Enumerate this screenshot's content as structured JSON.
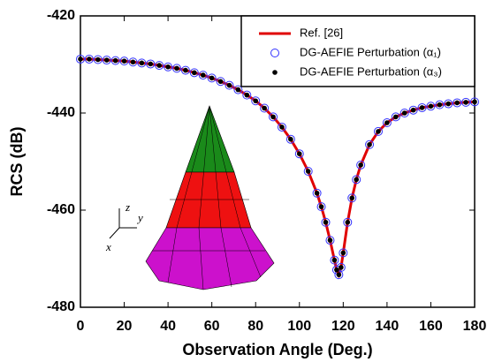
{
  "chart_data": {
    "type": "line",
    "x_label": "Observation Angle (Deg.)",
    "y_label": "RCS (dB)",
    "xlim": [
      0,
      180
    ],
    "xticks": [
      0,
      20,
      40,
      60,
      80,
      100,
      120,
      140,
      160,
      180
    ],
    "ylim": [
      -480,
      -420
    ],
    "yticks": [
      -480,
      -460,
      -440,
      -420
    ],
    "legend": "top-right",
    "annotations": [
      "z",
      "y",
      "x"
    ],
    "x": [
      0,
      4,
      8,
      12,
      16,
      20,
      24,
      28,
      32,
      36,
      40,
      44,
      48,
      52,
      56,
      60,
      64,
      68,
      72,
      76,
      80,
      84,
      88,
      92,
      96,
      100,
      104,
      108,
      110,
      112,
      114,
      116,
      117,
      118,
      119,
      120,
      122,
      124,
      126,
      128,
      132,
      136,
      140,
      144,
      148,
      152,
      156,
      160,
      164,
      168,
      172,
      176,
      180
    ],
    "series": [
      {
        "name": "Ref. [26]",
        "color": "#e00000",
        "style": "line",
        "values": [
          -428.9,
          -428.9,
          -429.0,
          -429.1,
          -429.2,
          -429.3,
          -429.5,
          -429.7,
          -429.9,
          -430.2,
          -430.5,
          -430.8,
          -431.2,
          -431.7,
          -432.2,
          -432.8,
          -433.5,
          -434.3,
          -435.2,
          -436.3,
          -437.5,
          -439.0,
          -440.8,
          -442.9,
          -445.4,
          -448.4,
          -452.0,
          -456.5,
          -459.3,
          -462.5,
          -466.2,
          -470.3,
          -472.3,
          -473.3,
          -471.8,
          -468.8,
          -462.5,
          -457.5,
          -453.7,
          -450.7,
          -446.5,
          -443.8,
          -442.0,
          -440.8,
          -440.0,
          -439.4,
          -438.9,
          -438.6,
          -438.3,
          -438.1,
          -437.9,
          -437.8,
          -437.7
        ]
      },
      {
        "name": "DG-AEFIE Perturbation  (α₁)",
        "color": "#3333ff",
        "style": "open-circle",
        "values": [
          -428.9,
          -428.9,
          -429.0,
          -429.1,
          -429.2,
          -429.3,
          -429.5,
          -429.7,
          -429.9,
          -430.2,
          -430.5,
          -430.8,
          -431.2,
          -431.7,
          -432.2,
          -432.8,
          -433.5,
          -434.3,
          -435.2,
          -436.3,
          -437.5,
          -439.0,
          -440.8,
          -442.9,
          -445.4,
          -448.4,
          -452.0,
          -456.5,
          -459.3,
          -462.5,
          -466.2,
          -470.3,
          -472.3,
          -473.3,
          -471.8,
          -468.8,
          -462.5,
          -457.5,
          -453.7,
          -450.7,
          -446.5,
          -443.8,
          -442.0,
          -440.8,
          -440.0,
          -439.4,
          -438.9,
          -438.6,
          -438.3,
          -438.1,
          -437.9,
          -437.8,
          -437.7
        ]
      },
      {
        "name": "DG-AEFIE Perturbation  (α₃)",
        "color": "#000000",
        "style": "dot",
        "values": [
          -428.9,
          -428.9,
          -429.0,
          -429.1,
          -429.2,
          -429.3,
          -429.5,
          -429.7,
          -429.9,
          -430.2,
          -430.5,
          -430.8,
          -431.2,
          -431.7,
          -432.2,
          -432.8,
          -433.5,
          -434.3,
          -435.2,
          -436.3,
          -437.5,
          -439.0,
          -440.8,
          -442.9,
          -445.4,
          -448.4,
          -452.0,
          -456.5,
          -459.3,
          -462.5,
          -466.2,
          -470.3,
          -472.3,
          -473.3,
          -471.8,
          -468.8,
          -462.5,
          -457.5,
          -453.7,
          -450.7,
          -446.5,
          -443.8,
          -442.0,
          -440.8,
          -440.0,
          -439.4,
          -438.9,
          -438.6,
          -438.3,
          -438.1,
          -437.9,
          -437.8,
          -437.7
        ]
      }
    ]
  }
}
